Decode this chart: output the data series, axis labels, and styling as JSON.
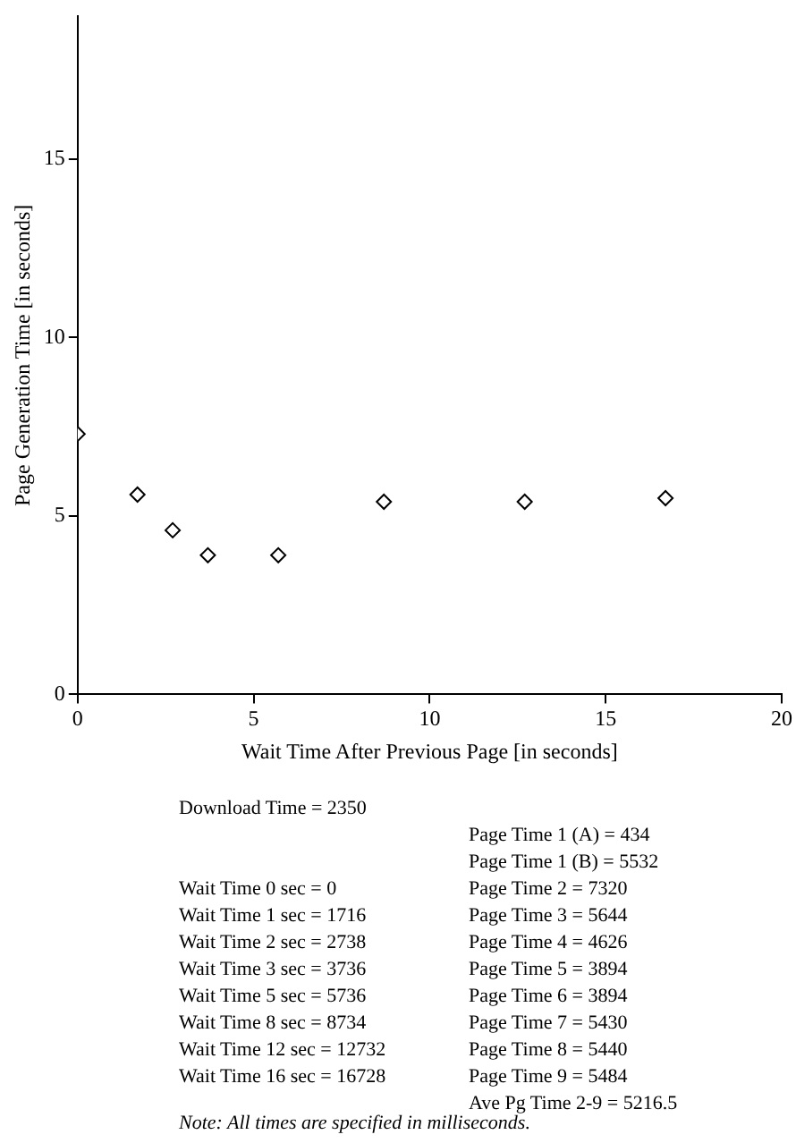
{
  "chart_data": {
    "type": "scatter",
    "xlabel": "Wait Time After Previous Page [in seconds]",
    "ylabel": "Page Generation Time [in seconds]",
    "x": [
      0,
      1.7,
      2.7,
      3.7,
      5.7,
      8.7,
      12.7,
      16.7
    ],
    "series": [
      {
        "color": "#000000",
        "values": [
          7.3,
          5.6,
          4.6,
          3.9,
          3.9,
          5.4,
          5.4,
          5.5
        ]
      }
    ],
    "xlim": [
      0,
      20
    ],
    "xticks": [
      0,
      5,
      10,
      15,
      20
    ],
    "ylim": [
      0,
      19
    ],
    "yticks": [
      0,
      5,
      10,
      15
    ],
    "grid": false,
    "legend": false,
    "marker": "diamond",
    "annotations": [
      "Download Time = 2350",
      "Wait Time 0 sec = 0",
      "Wait Time 1 sec = 1716",
      "Wait Time 2 sec = 2738",
      "Wait Time 3 sec = 3736",
      "Wait Time 5 sec = 5736",
      "Wait Time 8 sec = 8734",
      "Wait Time 12 sec = 12732",
      "Wait Time 16 sec = 16728",
      "Page Time 1 (A) = 434",
      "Page Time 1 (B) = 5532",
      "Page Time 2 = 7320",
      "Page Time 3 = 5644",
      "Page Time 4 = 4626",
      "Page Time 5 = 3894",
      "Page Time 6 = 3894",
      "Page Time 7 = 5430",
      "Page Time 8 = 5440",
      "Page Time 9 = 5484",
      "Ave Pg Time 2-9 = 5216.5",
      "Note: All times are specified in milliseconds."
    ]
  }
}
